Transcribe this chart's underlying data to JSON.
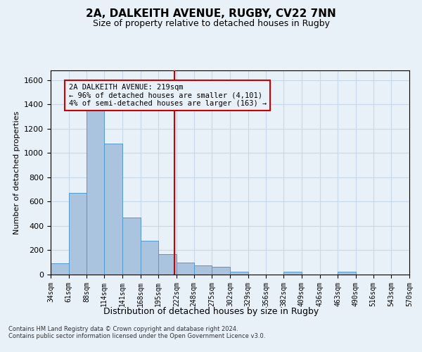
{
  "title": "2A, DALKEITH AVENUE, RUGBY, CV22 7NN",
  "subtitle": "Size of property relative to detached houses in Rugby",
  "xlabel": "Distribution of detached houses by size in Rugby",
  "ylabel": "Number of detached properties",
  "footnote1": "Contains HM Land Registry data © Crown copyright and database right 2024.",
  "footnote2": "Contains public sector information licensed under the Open Government Licence v3.0.",
  "annotation_line1": "2A DALKEITH AVENUE: 219sqm",
  "annotation_line2": "← 96% of detached houses are smaller (4,101)",
  "annotation_line3": "4% of semi-detached houses are larger (163) →",
  "property_size": 219,
  "bin_edges": [
    34,
    61,
    88,
    114,
    141,
    168,
    195,
    222,
    248,
    275,
    302,
    329,
    356,
    382,
    409,
    436,
    463,
    490,
    516,
    543,
    570
  ],
  "bar_heights": [
    90,
    670,
    1350,
    1080,
    470,
    280,
    170,
    100,
    75,
    65,
    25,
    0,
    0,
    25,
    0,
    0,
    25,
    0,
    0,
    0
  ],
  "bar_color": "#aac4e0",
  "bar_edge_color": "#5599cc",
  "vline_color": "#cc0000",
  "grid_color": "#c8d8e8",
  "background_color": "#e8f0f8",
  "annotation_box_color": "#cc0000",
  "ylim": [
    0,
    1680
  ],
  "yticks": [
    0,
    200,
    400,
    600,
    800,
    1000,
    1200,
    1400,
    1600
  ]
}
